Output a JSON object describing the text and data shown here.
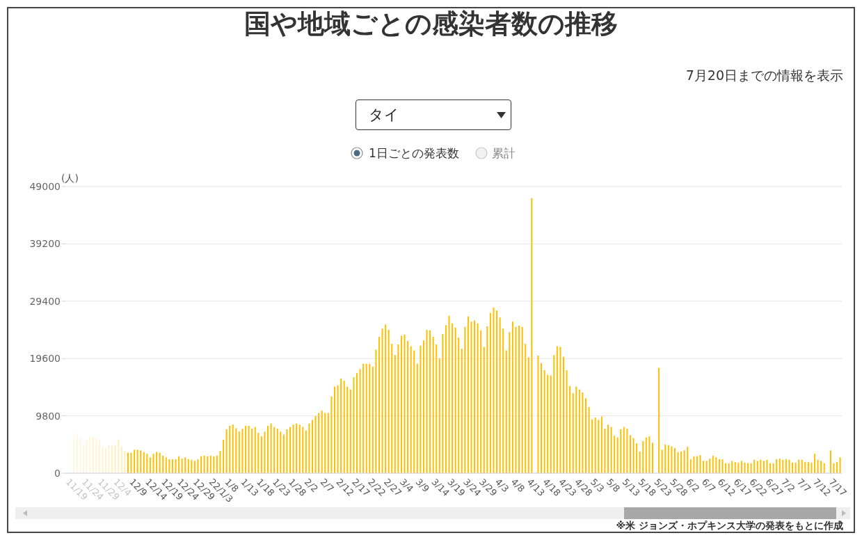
{
  "chart_data": {
    "type": "bar",
    "title": "国や地域ごとの感染者数の推移",
    "subtitle": "7月20日までの情報を表示",
    "ylabel": "(人)",
    "annotations": [
      "タイ",
      "1日ごとの発表数",
      "累計",
      "※米 ジョンズ・ホプキンス大学の発表をもとに作成"
    ],
    "categories": [
      "11/19",
      null,
      null,
      null,
      null,
      "11/24",
      null,
      null,
      null,
      null,
      "11/29",
      null,
      null,
      null,
      null,
      "12/4",
      null,
      null,
      null,
      null,
      "12/9",
      null,
      null,
      null,
      null,
      "12/14",
      null,
      null,
      null,
      null,
      "12/19",
      null,
      null,
      null,
      null,
      "12/24",
      null,
      null,
      null,
      null,
      "12/29",
      null,
      null,
      null,
      null,
      "22/1/3",
      null,
      null,
      null,
      null,
      "1/8",
      null,
      null,
      null,
      null,
      "1/13",
      null,
      null,
      null,
      null,
      "1/18",
      null,
      null,
      null,
      null,
      "1/23",
      null,
      null,
      null,
      null,
      "1/28",
      null,
      null,
      null,
      null,
      "2/2",
      null,
      null,
      null,
      null,
      "2/7",
      null,
      null,
      null,
      null,
      "2/12",
      null,
      null,
      null,
      null,
      "2/17",
      null,
      null,
      null,
      null,
      "2/22",
      null,
      null,
      null,
      null,
      "2/27",
      null,
      null,
      null,
      null,
      "3/4",
      null,
      null,
      null,
      null,
      "3/9",
      null,
      null,
      null,
      null,
      "3/14",
      null,
      null,
      null,
      null,
      "3/19",
      null,
      null,
      null,
      null,
      "3/24",
      null,
      null,
      null,
      null,
      "3/29",
      null,
      null,
      null,
      null,
      "4/3",
      null,
      null,
      null,
      null,
      "4/8",
      null,
      null,
      null,
      null,
      "4/13",
      null,
      null,
      null,
      null,
      "4/18",
      null,
      null,
      null,
      null,
      "4/23",
      null,
      null,
      null,
      null,
      "4/28",
      null,
      null,
      null,
      null,
      "5/3",
      null,
      null,
      null,
      null,
      "5/8",
      null,
      null,
      null,
      null,
      "5/13",
      null,
      null,
      null,
      null,
      "5/18",
      null,
      null,
      null,
      null,
      "5/23",
      null,
      null,
      null,
      null,
      "5/28",
      null,
      null,
      null,
      null,
      "6/2",
      null,
      null,
      null,
      null,
      "6/7",
      null,
      null,
      null,
      null,
      "6/12",
      null,
      null,
      null,
      null,
      "6/17",
      null,
      null,
      null,
      null,
      "6/22",
      null,
      null,
      null,
      null,
      "6/27",
      null,
      null,
      null,
      null,
      "7/2",
      null,
      null,
      null,
      null,
      "7/7",
      null,
      null,
      null,
      null,
      "7/12",
      null,
      null,
      null,
      null,
      "7/17",
      null,
      null,
      null
    ],
    "values": [
      null,
      null,
      6400,
      6800,
      6200,
      4900,
      5600,
      6200,
      6300,
      6000,
      5600,
      4600,
      4200,
      4800,
      4800,
      4800,
      5800,
      4600,
      3800,
      3500,
      3500,
      4000,
      4000,
      3900,
      3600,
      3300,
      2700,
      3300,
      3600,
      3500,
      3000,
      2700,
      2400,
      2400,
      2400,
      2900,
      2500,
      2700,
      2400,
      2300,
      2100,
      2400,
      2900,
      3000,
      2900,
      3000,
      2900,
      3000,
      3800,
      5700,
      7500,
      8100,
      8300,
      7700,
      7100,
      7600,
      8100,
      8100,
      7600,
      7900,
      6900,
      6300,
      7100,
      8100,
      8500,
      7900,
      7600,
      7100,
      6600,
      7500,
      7900,
      8300,
      8500,
      8300,
      7900,
      7300,
      8500,
      9100,
      9800,
      10300,
      10700,
      10300,
      10300,
      13100,
      14800,
      15000,
      16200,
      15800,
      14800,
      14300,
      16400,
      17100,
      17800,
      18700,
      18700,
      18700,
      18200,
      21100,
      23300,
      24700,
      25400,
      24500,
      22100,
      20200,
      22000,
      23500,
      23700,
      22600,
      21700,
      21000,
      18700,
      21800,
      22700,
      24500,
      24400,
      23300,
      22000,
      19600,
      23800,
      25300,
      26900,
      25600,
      24900,
      23200,
      21300,
      25000,
      26800,
      25900,
      26100,
      25600,
      24400,
      21600,
      25100,
      27400,
      28300,
      27800,
      26600,
      24700,
      21000,
      24100,
      25900,
      25000,
      25200,
      25000,
      22100,
      19800,
      47000,
      null,
      20100,
      18800,
      17600,
      16800,
      16700,
      20200,
      21700,
      21600,
      19900,
      17600,
      14900,
      13700,
      14800,
      14300,
      13800,
      12800,
      11300,
      9200,
      9500,
      9100,
      9700,
      7600,
      8300,
      7900,
      6400,
      6100,
      7500,
      7900,
      7600,
      6500,
      6000,
      5100,
      3700,
      5500,
      6100,
      6300,
      5200,
      null,
      18000,
      4000,
      4900,
      4800,
      4600,
      4300,
      3600,
      3700,
      3900,
      4500,
      2400,
      2900,
      2900,
      3100,
      2100,
      2100,
      2500,
      3000,
      2700,
      2400,
      2400,
      1700,
      1700,
      2100,
      1900,
      1800,
      2100,
      1800,
      1700,
      1700,
      2300,
      2100,
      2300,
      2100,
      2300,
      1700,
      1700,
      2400,
      2500,
      2300,
      2400,
      2300,
      1800,
      1800,
      2300,
      2300,
      1900,
      1900,
      1800,
      3300,
      2300,
      2100,
      1700,
      null,
      3900,
      1700,
      1900,
      2700
    ],
    "colors": [
      "#fff8e4",
      "#fff8e4",
      "#fff7e0",
      "#fff7e0",
      "#fff6dc",
      "#fff6dc",
      "#fff5d8",
      "#fff5d8",
      "#fff4d4",
      "#fff4d4",
      "#fff3d0",
      "#fff3d0",
      "#fff2cc",
      "#fff2cc",
      "#fff1c8",
      "#fff0c4",
      "#ffefc0",
      "#ffeebc",
      "#ffedb8",
      "#ffbf00",
      "#ffbf00",
      "#ffbf00",
      "#ffbf00",
      "#ffbf00",
      "#ffbf00",
      "#ffbf00",
      "#ffbf00",
      "#ffbf00",
      "#ffbf00",
      "#ffbf00",
      "#ffbf00",
      "#ffbf00",
      "#ffbf00",
      "#ffbf00",
      "#ffbf00",
      "#ffbf00",
      "#ffbf00",
      "#ffbf00",
      "#ffbf00",
      "#ffbf00",
      "#ffbf00",
      "#ffbf00",
      "#ffbf00",
      "#ffbf00",
      "#ffbf00",
      "#ffbf00",
      "#ffbf00",
      "#ffbf00",
      "#ffbf00",
      "#ffbf00",
      "#ffbf00",
      "#ffbf00",
      "#ffbf00",
      "#ffbf00",
      "#ffbf00",
      "#ffbf00",
      "#ffbf00",
      "#ffbf00",
      "#ffbf00",
      "#ffbf00",
      "#ffbf00",
      "#ffbf00",
      "#ffbf00",
      "#ffbf00",
      "#ffbf00",
      "#ffbf00",
      "#ffbf00",
      "#ffbf00",
      "#ffbf00",
      "#ffbf00",
      "#ffbf00",
      "#ffbf00",
      "#ffbf00",
      "#ffbf00",
      "#ffbf00",
      "#ffbf00",
      "#ffbf00",
      "#ffbf00",
      "#ffbf00",
      "#ffbf00",
      "#ffbf00",
      "#ffbf00",
      "#ffbf00",
      "#ffbf00",
      "#ffbf00",
      "#ffbf00",
      "#ffbf00",
      "#ffbf00",
      "#ffbf00",
      "#ffbf00",
      "#ffbf00",
      "#ffbf00",
      "#ffbf00",
      "#ffbf00",
      "#ffbf00",
      "#ffbf00",
      "#ffbf00",
      "#ffbf00",
      "#ffbf00",
      "#ffbf00",
      "#ffbf00",
      "#ffbf00",
      "#ffbf00",
      "#ffbf00",
      "#ffbf00",
      "#ffbf00",
      "#ffbf00",
      "#ffbf00",
      "#ffbf00",
      "#ffbf00",
      "#ffbf00",
      "#ffbf00",
      "#ffbf00",
      "#ffbf00",
      "#ffbf00",
      "#ffbf00",
      "#ffbf00",
      "#ffbf00",
      "#ffbf00",
      "#ffbf00",
      "#ffbf00",
      "#ffbf00",
      "#ffbf00",
      "#ffbf00",
      "#ffbf00",
      "#ffbf00",
      "#ffbf00",
      "#ffbf00",
      "#ffbf00",
      "#ffbf00",
      "#ffbf00",
      "#ffbf00",
      "#ffbf00",
      "#ffbf00",
      "#ffbf00",
      "#ffbf00",
      "#ffbf00",
      "#ffbf00",
      "#ffbf00",
      "#ffbf00",
      "#ffbf00",
      "#ffbf00",
      "#ffbf00",
      "#ffbf00",
      "#ffbf00",
      "#ffbf00",
      "#ffbf00",
      "#ffbf00",
      "#ffbf00",
      "#ffbf00",
      "#ffbf00",
      "#ffbf00",
      "#ffbf00",
      "#ffbf00",
      "#ffbf00",
      "#ffbf00",
      "#ffbf00",
      "#ffbf00",
      "#ffbf00",
      "#ffbf00",
      "#ffbf00",
      "#ffbf00",
      "#ffbf00",
      "#ffbf00",
      "#ffbf00",
      "#ffbf00",
      "#ffbf00",
      "#ffbf00",
      "#ffbf00",
      "#ffbf00",
      "#ffbf00",
      "#ffbf00",
      "#ffbf00",
      "#ffbf00",
      "#ffbf00",
      "#ffbf00",
      "#ffbf00",
      "#ffbf00",
      "#ffbf00",
      "#ffbf00",
      "#ffbf00",
      "#ffbf00",
      "#ffbf00",
      "#ffbf00",
      "#ffbf00",
      "#ffbf00",
      "#ffbf00",
      "#ffbf00",
      "#ffbf00",
      "#ffbf00",
      "#ffbf00",
      "#ffbf00",
      "#ffbf00",
      "#ffbf00",
      "#ffbf00",
      "#ffbf00",
      "#ffbf00",
      "#ffbf00",
      "#ffbf00",
      "#ffbf00",
      "#ffbf00",
      "#ffbf00",
      "#ffbf00",
      "#ffbf00",
      "#ffbf00",
      "#ffbf00",
      "#ffbf00",
      "#ffbf00",
      "#ffbf00",
      "#ffbf00",
      "#ffbf00",
      "#ffbf00",
      "#ffbf00",
      "#ffbf00",
      "#ffbf00",
      "#ffbf00",
      "#ffbf00",
      "#ffbf00",
      "#ffbf00",
      "#ffbf00",
      "#ffbf00",
      "#ffbf00",
      "#ffbf00",
      "#ffbf00",
      "#ffbf00",
      "#ffbf00",
      "#ffbf00",
      "#ffbf00",
      "#ffbf00",
      "#ffbf00",
      "#ffbf00",
      "#ffbf00",
      "#ffbf00",
      "#ffbf00",
      "#ffbf00",
      "#ffbf00",
      "#ffbf00",
      "#ffbf00",
      "#ffbf00",
      "#ffbf00",
      "#ffbf00",
      "#ffbf00",
      "#ffbf00",
      "#ffbf00"
    ],
    "ylim": [
      0,
      49000
    ],
    "yticks": [
      0,
      9800,
      19600,
      29400,
      39200,
      49000
    ],
    "grid": "y"
  }
}
